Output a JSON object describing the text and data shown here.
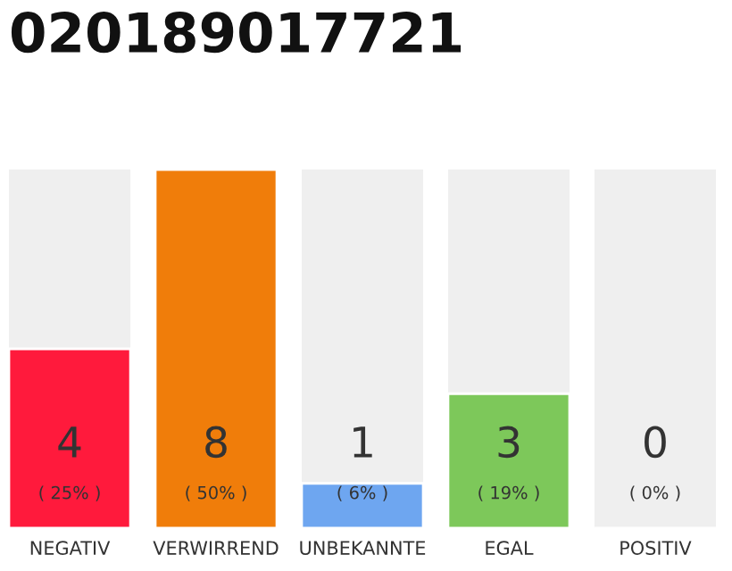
{
  "chart_data": {
    "type": "bar",
    "title": "020189017721",
    "categories": [
      "NEGATIV",
      "VERWIRREND",
      "UNBEKANNTE",
      "EGAL",
      "POSITIV"
    ],
    "values": [
      4,
      8,
      1,
      3,
      0
    ],
    "colors": [
      "#ff1a3c",
      "#f07d0a",
      "#6ea6f0",
      "#7dc85a",
      null
    ],
    "ylim": [
      0,
      8
    ],
    "tick_labels": "x",
    "data_labels": true,
    "grid": false,
    "legend": false,
    "annotations": [
      "( 25% )",
      "( 50% )",
      "( 6% )",
      "( 19% )",
      "( 0% )"
    ]
  }
}
